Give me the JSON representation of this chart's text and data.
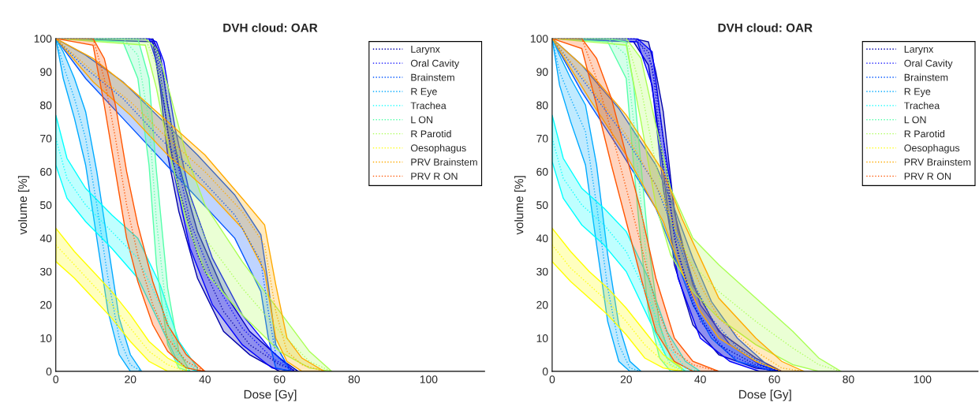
{
  "chart_data": [
    {
      "type": "line",
      "title": "DVH cloud: OAR",
      "xlabel": "Dose [Gy]",
      "ylabel": "volume [%]",
      "xlim": [
        0,
        115
      ],
      "ylim": [
        0,
        100
      ],
      "xticks": [
        0,
        20,
        40,
        60,
        80,
        100
      ],
      "yticks": [
        0,
        10,
        20,
        30,
        40,
        50,
        60,
        70,
        80,
        90,
        100
      ],
      "legend": "top right",
      "line_style": "dotted",
      "grid": false,
      "series": [
        {
          "name": "Larynx",
          "color": "#0000aa",
          "x": [
            0,
            26,
            28,
            30,
            33,
            38,
            45,
            52,
            60,
            65
          ],
          "values": [
            100,
            100,
            90,
            72,
            55,
            35,
            18,
            8,
            2,
            0
          ],
          "lower": [
            100,
            99,
            85,
            65,
            48,
            28,
            12,
            5,
            0,
            0
          ],
          "upper": [
            100,
            100,
            95,
            80,
            62,
            42,
            24,
            12,
            4,
            0
          ]
        },
        {
          "name": "Oral Cavity",
          "color": "#0000ff",
          "x": [
            0,
            25,
            27,
            29,
            32,
            36,
            42,
            50,
            58,
            64
          ],
          "values": [
            100,
            100,
            97,
            88,
            66,
            45,
            28,
            13,
            4,
            0
          ],
          "lower": [
            100,
            100,
            93,
            80,
            58,
            37,
            20,
            8,
            1,
            0
          ],
          "upper": [
            100,
            100,
            99,
            93,
            73,
            53,
            34,
            17,
            6,
            0
          ]
        },
        {
          "name": "Brainstem",
          "color": "#0055ff",
          "x": [
            0,
            8,
            18,
            28,
            38,
            48,
            55,
            57,
            59,
            63
          ],
          "values": [
            100,
            91,
            82,
            70,
            59,
            47,
            33,
            18,
            5,
            0
          ],
          "lower": [
            100,
            88,
            76,
            64,
            52,
            40,
            24,
            10,
            1,
            0
          ],
          "upper": [
            100,
            95,
            87,
            76,
            65,
            53,
            41,
            26,
            8,
            0
          ]
        },
        {
          "name": "R Eye",
          "color": "#00aaff",
          "x": [
            0,
            2,
            5,
            8,
            11,
            14,
            17,
            20,
            23
          ],
          "values": [
            100,
            92,
            82,
            70,
            50,
            28,
            10,
            2,
            0
          ],
          "lower": [
            100,
            88,
            76,
            62,
            40,
            18,
            5,
            0,
            0
          ],
          "upper": [
            100,
            96,
            88,
            78,
            60,
            38,
            16,
            5,
            0
          ]
        },
        {
          "name": "Trachea",
          "color": "#00ffff",
          "x": [
            0,
            3,
            8,
            15,
            22,
            28,
            33,
            38
          ],
          "values": [
            70,
            58,
            50,
            42,
            34,
            20,
            5,
            0
          ],
          "lower": [
            62,
            52,
            45,
            37,
            28,
            14,
            2,
            0
          ],
          "upper": [
            77,
            64,
            55,
            47,
            40,
            26,
            9,
            1
          ]
        },
        {
          "name": "L ON",
          "color": "#55ffaa",
          "x": [
            0,
            18,
            22,
            25,
            27,
            30,
            33,
            36
          ],
          "values": [
            100,
            100,
            95,
            75,
            45,
            15,
            3,
            0
          ],
          "lower": [
            100,
            99,
            88,
            62,
            32,
            8,
            1,
            0
          ],
          "upper": [
            100,
            100,
            100,
            88,
            60,
            25,
            6,
            0
          ]
        },
        {
          "name": "R Parotid",
          "color": "#aaff55",
          "x": [
            0,
            24,
            27,
            30,
            35,
            40,
            50,
            60,
            68,
            74
          ],
          "values": [
            100,
            100,
            92,
            78,
            55,
            40,
            25,
            12,
            3,
            0
          ],
          "lower": [
            100,
            98,
            85,
            68,
            45,
            30,
            17,
            6,
            1,
            0
          ],
          "upper": [
            100,
            100,
            97,
            86,
            65,
            50,
            33,
            18,
            6,
            0
          ]
        },
        {
          "name": "Oesophagus",
          "color": "#ffff00",
          "x": [
            0,
            5,
            10,
            15,
            20,
            25,
            30,
            35
          ],
          "values": [
            38,
            32,
            26,
            20,
            13,
            6,
            2,
            0
          ],
          "lower": [
            33,
            28,
            22,
            16,
            9,
            3,
            0,
            0
          ],
          "upper": [
            43,
            36,
            30,
            24,
            17,
            9,
            4,
            1
          ]
        },
        {
          "name": "PRV Brainstem",
          "color": "#ffaa00",
          "x": [
            0,
            10,
            20,
            30,
            40,
            50,
            56,
            59,
            62,
            66,
            72
          ],
          "values": [
            100,
            90,
            81,
            70,
            60,
            48,
            38,
            18,
            6,
            2,
            0
          ],
          "lower": [
            100,
            87,
            77,
            65,
            55,
            43,
            30,
            10,
            3,
            0,
            0
          ],
          "upper": [
            100,
            94,
            85,
            75,
            65,
            52,
            44,
            26,
            10,
            4,
            0
          ]
        },
        {
          "name": "PRV R ON",
          "color": "#ff5500",
          "x": [
            0,
            10,
            13,
            16,
            19,
            22,
            26,
            30,
            35,
            40
          ],
          "values": [
            100,
            100,
            88,
            70,
            50,
            35,
            20,
            10,
            3,
            0
          ],
          "lower": [
            100,
            98,
            80,
            60,
            40,
            27,
            14,
            6,
            1,
            0
          ],
          "upper": [
            100,
            100,
            94,
            80,
            60,
            44,
            27,
            14,
            5,
            0
          ]
        }
      ]
    },
    {
      "type": "line",
      "title": "DVH cloud: OAR",
      "xlabel": "Dose [Gy]",
      "ylabel": "volume [%]",
      "xlim": [
        0,
        115
      ],
      "ylim": [
        0,
        100
      ],
      "xticks": [
        0,
        20,
        40,
        60,
        80,
        100
      ],
      "yticks": [
        0,
        10,
        20,
        30,
        40,
        50,
        60,
        70,
        80,
        90,
        100
      ],
      "legend": "top right",
      "line_style": "dotted",
      "grid": false,
      "series": [
        {
          "name": "Larynx",
          "color": "#0000aa",
          "x": [
            0,
            22,
            26,
            28,
            30,
            33,
            38,
            45,
            55,
            62
          ],
          "values": [
            100,
            100,
            96,
            85,
            70,
            40,
            20,
            8,
            2,
            0
          ],
          "lower": [
            100,
            99,
            92,
            78,
            60,
            32,
            14,
            5,
            1,
            0
          ],
          "upper": [
            100,
            100,
            99,
            90,
            78,
            48,
            26,
            12,
            4,
            0
          ]
        },
        {
          "name": "Oral Cavity",
          "color": "#0000ff",
          "x": [
            0,
            23,
            27,
            30,
            34,
            40,
            48,
            56,
            61
          ],
          "values": [
            100,
            100,
            92,
            62,
            35,
            15,
            5,
            1,
            0
          ],
          "lower": [
            100,
            99,
            86,
            55,
            28,
            10,
            3,
            0,
            0
          ],
          "upper": [
            100,
            100,
            96,
            70,
            42,
            20,
            8,
            2,
            0
          ]
        },
        {
          "name": "Brainstem",
          "color": "#0055ff",
          "x": [
            0,
            8,
            18,
            28,
            33,
            38,
            43,
            50,
            60
          ],
          "values": [
            100,
            88,
            73,
            56,
            42,
            27,
            16,
            7,
            0
          ],
          "lower": [
            100,
            84,
            67,
            49,
            35,
            20,
            10,
            3,
            0
          ],
          "upper": [
            100,
            92,
            79,
            62,
            49,
            34,
            21,
            10,
            0
          ]
        },
        {
          "name": "R Eye",
          "color": "#00aaff",
          "x": [
            0,
            2,
            5,
            9,
            12,
            15,
            18,
            21,
            24
          ],
          "values": [
            100,
            90,
            82,
            72,
            50,
            25,
            8,
            1,
            0
          ],
          "lower": [
            100,
            86,
            75,
            62,
            38,
            15,
            3,
            0,
            0
          ],
          "upper": [
            100,
            95,
            88,
            80,
            62,
            35,
            14,
            3,
            0
          ]
        },
        {
          "name": "Trachea",
          "color": "#00ffff",
          "x": [
            0,
            3,
            8,
            14,
            20,
            26,
            31,
            36,
            40
          ],
          "values": [
            70,
            58,
            50,
            44,
            36,
            22,
            8,
            1,
            0
          ],
          "lower": [
            63,
            52,
            44,
            38,
            30,
            16,
            4,
            0,
            0
          ],
          "upper": [
            77,
            64,
            55,
            49,
            42,
            28,
            12,
            3,
            0
          ]
        },
        {
          "name": "L ON",
          "color": "#55ffaa",
          "x": [
            0,
            15,
            20,
            22,
            24,
            26,
            29,
            32,
            36
          ],
          "values": [
            100,
            100,
            95,
            75,
            50,
            28,
            8,
            2,
            0
          ],
          "lower": [
            100,
            99,
            88,
            62,
            38,
            18,
            4,
            0,
            0
          ],
          "upper": [
            100,
            100,
            99,
            86,
            62,
            38,
            14,
            4,
            0
          ]
        },
        {
          "name": "R Parotid",
          "color": "#aaff55",
          "x": [
            0,
            20,
            24,
            28,
            32,
            38,
            45,
            55,
            65,
            72,
            78
          ],
          "values": [
            100,
            100,
            85,
            62,
            45,
            32,
            24,
            15,
            7,
            2,
            0
          ],
          "lower": [
            100,
            98,
            75,
            50,
            35,
            24,
            16,
            8,
            2,
            0,
            0
          ],
          "upper": [
            100,
            100,
            94,
            74,
            55,
            40,
            32,
            22,
            12,
            4,
            0
          ]
        },
        {
          "name": "Oesophagus",
          "color": "#ffff00",
          "x": [
            0,
            5,
            10,
            15,
            20,
            25,
            30,
            35
          ],
          "values": [
            38,
            31,
            26,
            21,
            15,
            8,
            3,
            0
          ],
          "lower": [
            33,
            27,
            22,
            17,
            11,
            4,
            1,
            0
          ],
          "upper": [
            43,
            36,
            30,
            25,
            19,
            12,
            5,
            1
          ]
        },
        {
          "name": "PRV Brainstem",
          "color": "#ffaa00",
          "x": [
            0,
            10,
            20,
            30,
            35,
            40,
            45,
            55,
            62,
            68
          ],
          "values": [
            100,
            86,
            71,
            52,
            38,
            26,
            16,
            6,
            1,
            0
          ],
          "lower": [
            100,
            82,
            65,
            45,
            30,
            18,
            10,
            3,
            0,
            0
          ],
          "upper": [
            100,
            90,
            77,
            60,
            46,
            34,
            22,
            10,
            3,
            0
          ]
        },
        {
          "name": "PRV R ON",
          "color": "#ff5500",
          "x": [
            0,
            8,
            12,
            16,
            20,
            24,
            28,
            33,
            38,
            45
          ],
          "values": [
            100,
            100,
            88,
            72,
            55,
            38,
            20,
            6,
            2,
            0
          ],
          "lower": [
            100,
            97,
            80,
            62,
            45,
            28,
            12,
            3,
            0,
            0
          ],
          "upper": [
            100,
            100,
            94,
            82,
            65,
            48,
            28,
            10,
            3,
            0
          ]
        }
      ]
    }
  ]
}
